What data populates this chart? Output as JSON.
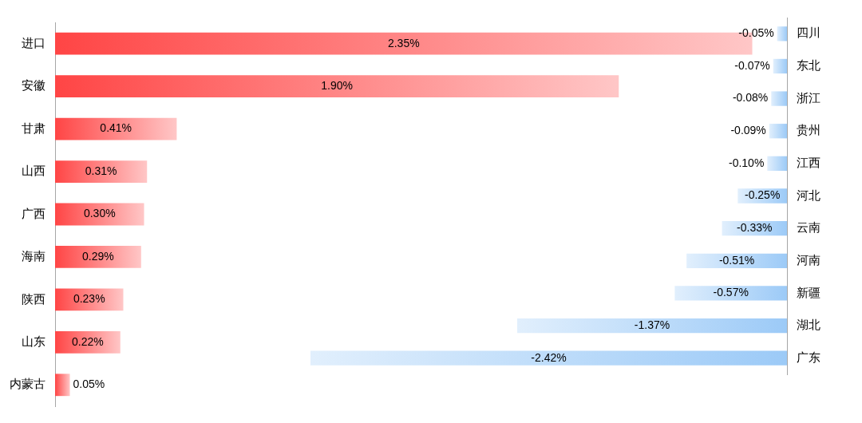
{
  "chart_data": [
    {
      "type": "bar",
      "orientation": "horizontal",
      "categories": [
        "进口",
        "安徽",
        "甘肃",
        "山西",
        "广西",
        "海南",
        "陕西",
        "山东",
        "内蒙古"
      ],
      "values": [
        2.35,
        1.9,
        0.41,
        0.31,
        0.3,
        0.29,
        0.23,
        0.22,
        0.05
      ],
      "value_labels": [
        "2.35%",
        "1.90%",
        "0.41%",
        "0.31%",
        "0.30%",
        "0.29%",
        "0.23%",
        "0.22%",
        "0.05%"
      ],
      "color": "#ff4545",
      "tick_labels": "y"
    },
    {
      "type": "bar",
      "orientation": "horizontal",
      "categories": [
        "四川",
        "东北",
        "浙江",
        "贵州",
        "江西",
        "河北",
        "云南",
        "河南",
        "新疆",
        "湖北",
        "广东"
      ],
      "values": [
        -0.05,
        -0.07,
        -0.08,
        -0.09,
        -0.1,
        -0.25,
        -0.33,
        -0.51,
        -0.57,
        -1.37,
        -2.42
      ],
      "value_labels": [
        "-0.05%",
        "-0.07%",
        "-0.08%",
        "-0.09%",
        "-0.10%",
        "-0.25%",
        "-0.33%",
        "-0.51%",
        "-0.57%",
        "-1.37%",
        "-2.42%"
      ],
      "color": "#9ccaf7",
      "tick_labels": "y"
    }
  ]
}
